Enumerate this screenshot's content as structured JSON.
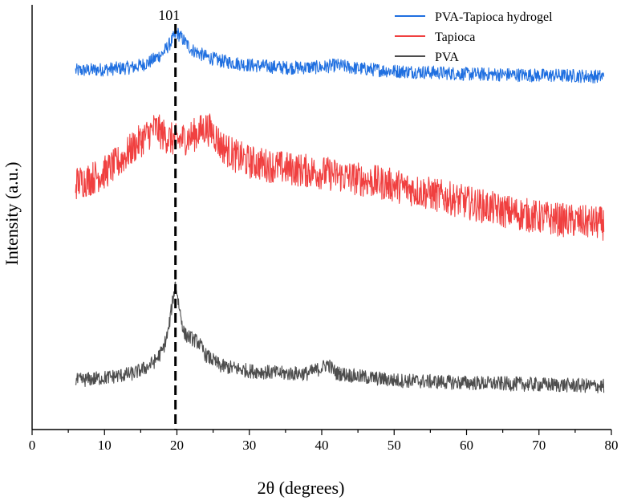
{
  "chart_data": {
    "type": "line",
    "title": "",
    "xlabel": "2θ (degrees)",
    "ylabel": "Intensity (a.u.)",
    "xlim": [
      0,
      80
    ],
    "ylim": [
      0,
      100
    ],
    "xticks": [
      "0",
      "10",
      "20",
      "30",
      "40",
      "50",
      "60",
      "70",
      "80"
    ],
    "legend_position": "top-right",
    "grid": false,
    "annotation": {
      "text": "101",
      "x": 19.8,
      "style": "dashed vertical line"
    },
    "series": [
      {
        "name": "PVA-Tapioca hydrogel",
        "color": "#1f6fe0",
        "noise": 1.6,
        "x": [
          6,
          10,
          14,
          16,
          18,
          19,
          20,
          21,
          22,
          24,
          26,
          30,
          35,
          40,
          42,
          45,
          50,
          55,
          60,
          65,
          70,
          75,
          79
        ],
        "y": [
          84.5,
          84.8,
          85.3,
          86.3,
          88.5,
          90.8,
          93.5,
          91.5,
          89.5,
          87.8,
          86.8,
          85.8,
          85.2,
          85.3,
          85.8,
          85.0,
          84.4,
          84.1,
          83.7,
          83.6,
          83.4,
          83.3,
          83.1
        ]
      },
      {
        "name": "Tapioca",
        "color": "#f04040",
        "noise": 4,
        "x": [
          6,
          8,
          10,
          12,
          14,
          16,
          17,
          18,
          19,
          20,
          21,
          22,
          23,
          24,
          25,
          26,
          28,
          30,
          35,
          40,
          45,
          50,
          55,
          60,
          65,
          70,
          75,
          79
        ],
        "y": [
          58,
          59,
          60.5,
          63,
          66.5,
          69.5,
          71,
          69.5,
          68.5,
          68,
          68.5,
          69,
          70,
          71,
          70,
          67,
          64.5,
          63,
          61.5,
          60.5,
          59,
          57.5,
          55.5,
          53.5,
          51.5,
          50,
          49,
          48.5
        ]
      },
      {
        "name": "PVA",
        "color": "#4d4d4d",
        "noise": 1.7,
        "x": [
          6,
          10,
          14,
          16,
          17,
          18,
          18.8,
          19.3,
          19.8,
          20.3,
          21,
          22,
          23,
          24,
          26,
          30,
          35,
          38,
          40,
          40.8,
          42,
          45,
          50,
          55,
          60,
          65,
          70,
          75,
          79
        ],
        "y": [
          11.5,
          12.2,
          13.2,
          14.8,
          16.2,
          18.5,
          23,
          29,
          34.5,
          29,
          22.5,
          21.5,
          20.5,
          17.5,
          15,
          13.8,
          13.2,
          13.2,
          14.5,
          15.5,
          13.3,
          12.5,
          11.6,
          11.3,
          11,
          10.8,
          10.6,
          10.4,
          10.2
        ]
      }
    ]
  }
}
